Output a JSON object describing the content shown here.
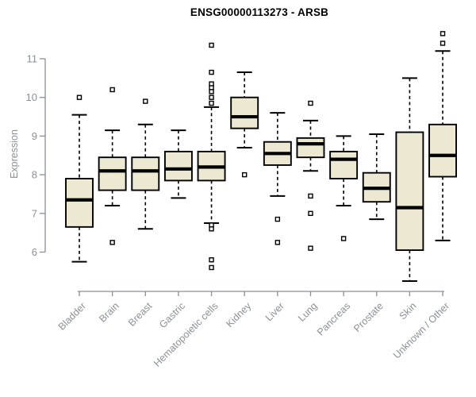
{
  "chart_data": {
    "type": "boxplot",
    "title": "ENSG00000113273 - ARSB",
    "ylabel": "Expression",
    "xlabel": "",
    "ylim": [
      6,
      11
    ],
    "yticks": [
      6,
      7,
      8,
      9,
      10,
      11
    ],
    "grid": false,
    "legend": "none",
    "categories": [
      "Bladder",
      "Brain",
      "Breast",
      "Gastric",
      "Hematopoietic cells",
      "Kidney",
      "Liver",
      "Lung",
      "Pancreas",
      "Prostate",
      "Skin",
      "Unknown / Other"
    ],
    "series": [
      {
        "name": "Bladder",
        "whisker_low": 5.75,
        "q1": 6.65,
        "median": 7.35,
        "q3": 7.9,
        "whisker_high": 9.55,
        "outliers": [
          10.0
        ]
      },
      {
        "name": "Brain",
        "whisker_low": 7.2,
        "q1": 7.6,
        "median": 8.1,
        "q3": 8.45,
        "whisker_high": 9.15,
        "outliers": [
          10.2,
          6.25
        ]
      },
      {
        "name": "Breast",
        "whisker_low": 6.6,
        "q1": 7.6,
        "median": 8.1,
        "q3": 8.45,
        "whisker_high": 9.3,
        "outliers": [
          9.9
        ]
      },
      {
        "name": "Gastric",
        "whisker_low": 7.4,
        "q1": 7.85,
        "median": 8.15,
        "q3": 8.6,
        "whisker_high": 9.15,
        "outliers": []
      },
      {
        "name": "Hematopoietic cells",
        "whisker_low": 6.75,
        "q1": 7.85,
        "median": 8.2,
        "q3": 8.6,
        "whisker_high": 9.75,
        "outliers": [
          11.35,
          10.65,
          10.35,
          10.25,
          10.15,
          10.0,
          9.85,
          6.7,
          6.6,
          5.8,
          5.6
        ]
      },
      {
        "name": "Kidney",
        "whisker_low": 8.7,
        "q1": 9.2,
        "median": 9.5,
        "q3": 10.0,
        "whisker_high": 10.65,
        "outliers": [
          8.0
        ]
      },
      {
        "name": "Liver",
        "whisker_low": 7.45,
        "q1": 8.25,
        "median": 8.55,
        "q3": 8.85,
        "whisker_high": 9.6,
        "outliers": [
          6.85,
          6.25
        ]
      },
      {
        "name": "Lung",
        "whisker_low": 8.1,
        "q1": 8.45,
        "median": 8.8,
        "q3": 8.95,
        "whisker_high": 9.4,
        "outliers": [
          9.85,
          7.45,
          7.0,
          6.1
        ]
      },
      {
        "name": "Pancreas",
        "whisker_low": 7.2,
        "q1": 7.9,
        "median": 8.4,
        "q3": 8.6,
        "whisker_high": 9.0,
        "outliers": [
          6.35
        ]
      },
      {
        "name": "Prostate",
        "whisker_low": 6.85,
        "q1": 7.3,
        "median": 7.65,
        "q3": 8.05,
        "whisker_high": 9.05,
        "outliers": []
      },
      {
        "name": "Skin",
        "whisker_low": 5.25,
        "q1": 6.05,
        "median": 7.15,
        "q3": 9.1,
        "whisker_high": 10.5,
        "outliers": []
      },
      {
        "name": "Unknown / Other",
        "whisker_low": 6.3,
        "q1": 7.95,
        "median": 8.5,
        "q3": 9.3,
        "whisker_high": 11.2,
        "outliers": [
          11.65,
          11.4
        ]
      }
    ]
  },
  "colors": {
    "box_fill": "#EDE8D1",
    "box_stroke": "#000000",
    "median": "#000000",
    "whisker": "#000000",
    "outlier_stroke": "#000000",
    "outlier_fill": "#ffffff",
    "axis": "#8a8f99",
    "tick_label": "#8a8f99",
    "title": "#000000"
  }
}
